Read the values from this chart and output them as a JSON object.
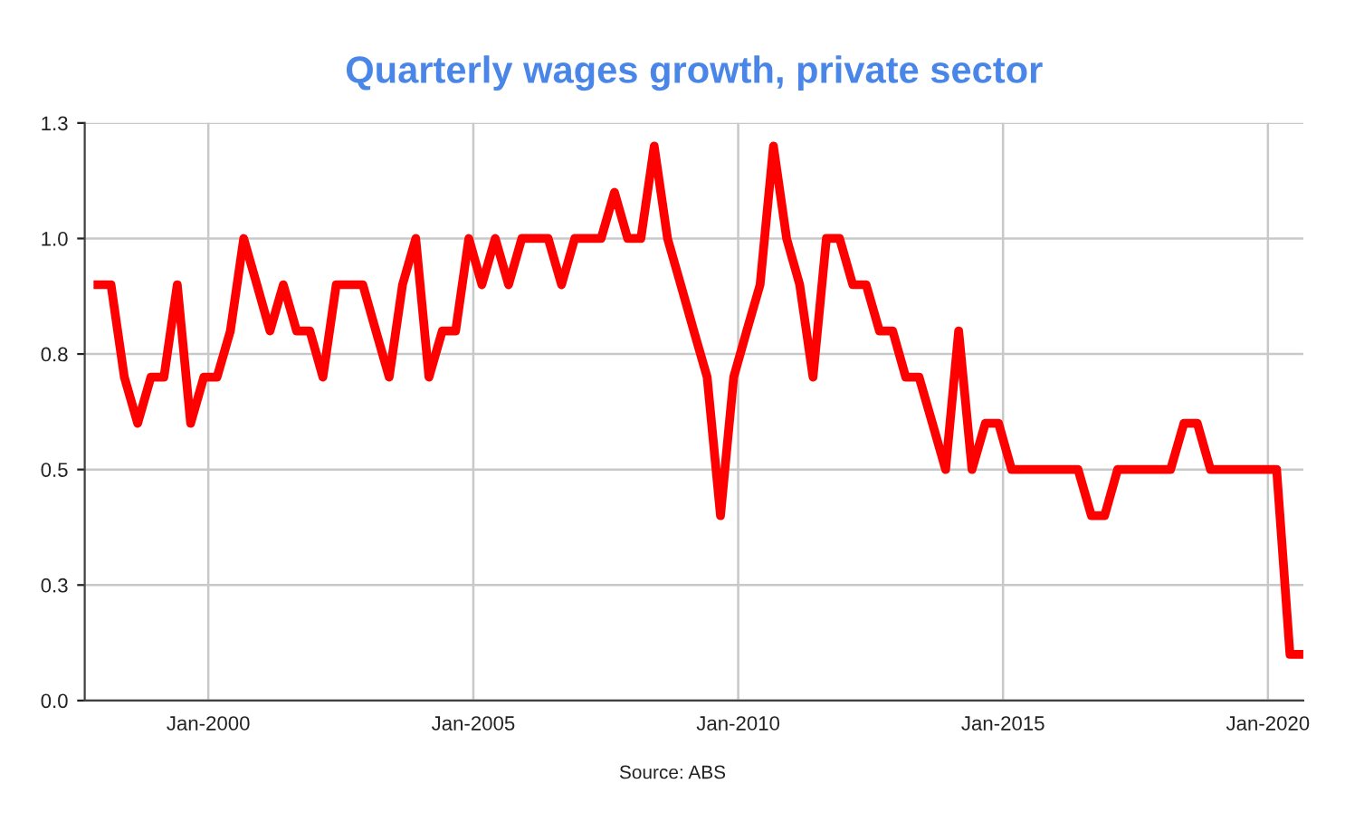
{
  "chart_data": {
    "type": "line",
    "title": "Quarterly wages growth, private sector",
    "annotations": [
      "Source: ABS"
    ],
    "x": [
      "1997-12",
      "1998-03",
      "1998-06",
      "1998-09",
      "1998-12",
      "1999-03",
      "1999-06",
      "1999-09",
      "1999-12",
      "2000-03",
      "2000-06",
      "2000-09",
      "2000-12",
      "2001-03",
      "2001-06",
      "2001-09",
      "2001-12",
      "2002-03",
      "2002-06",
      "2002-09",
      "2002-12",
      "2003-03",
      "2003-06",
      "2003-09",
      "2003-12",
      "2004-03",
      "2004-06",
      "2004-09",
      "2004-12",
      "2005-03",
      "2005-06",
      "2005-09",
      "2005-12",
      "2006-03",
      "2006-06",
      "2006-09",
      "2006-12",
      "2007-03",
      "2007-06",
      "2007-09",
      "2007-12",
      "2008-03",
      "2008-06",
      "2008-09",
      "2008-12",
      "2009-03",
      "2009-06",
      "2009-09",
      "2009-12",
      "2010-03",
      "2010-06",
      "2010-09",
      "2010-12",
      "2011-03",
      "2011-06",
      "2011-09",
      "2011-12",
      "2012-03",
      "2012-06",
      "2012-09",
      "2012-12",
      "2013-03",
      "2013-06",
      "2013-09",
      "2013-12",
      "2014-03",
      "2014-06",
      "2014-09",
      "2014-12",
      "2015-03",
      "2015-06",
      "2015-09",
      "2015-12",
      "2016-03",
      "2016-06",
      "2016-09",
      "2016-12",
      "2017-03",
      "2017-06",
      "2017-09",
      "2017-12",
      "2018-03",
      "2018-06",
      "2018-09",
      "2018-12",
      "2019-03",
      "2019-06",
      "2019-09",
      "2019-12",
      "2020-03",
      "2020-06",
      "2020-09"
    ],
    "series": [
      {
        "color": "#ff0000",
        "values": [
          0.9,
          0.9,
          0.7,
          0.6,
          0.7,
          0.7,
          0.9,
          0.6,
          0.7,
          0.7,
          0.8,
          1.0,
          0.9,
          0.8,
          0.9,
          0.8,
          0.8,
          0.7,
          0.9,
          0.9,
          0.9,
          0.8,
          0.7,
          0.9,
          1.0,
          0.7,
          0.8,
          0.8,
          1.0,
          0.9,
          1.0,
          0.9,
          1.0,
          1.0,
          1.0,
          0.9,
          1.0,
          1.0,
          1.0,
          1.1,
          1.0,
          1.0,
          1.2,
          1.0,
          0.9,
          0.8,
          0.7,
          0.4,
          0.7,
          0.8,
          0.9,
          1.2,
          1.0,
          0.9,
          0.7,
          1.0,
          1.0,
          0.9,
          0.9,
          0.8,
          0.8,
          0.7,
          0.7,
          0.6,
          0.5,
          0.8,
          0.5,
          0.6,
          0.6,
          0.5,
          0.5,
          0.5,
          0.5,
          0.5,
          0.5,
          0.4,
          0.4,
          0.5,
          0.5,
          0.5,
          0.5,
          0.5,
          0.6,
          0.6,
          0.5,
          0.5,
          0.5,
          0.5,
          0.5,
          0.5,
          0.1,
          0.1
        ]
      }
    ],
    "xlim": [
      "1997-09",
      "2020-09"
    ],
    "xticks": [
      {
        "value": "2000-01",
        "label": "Jan-2000"
      },
      {
        "value": "2005-01",
        "label": "Jan-2005"
      },
      {
        "value": "2010-01",
        "label": "Jan-2010"
      },
      {
        "value": "2015-01",
        "label": "Jan-2015"
      },
      {
        "value": "2020-01",
        "label": "Jan-2020"
      }
    ],
    "ylim": [
      0,
      1.25
    ],
    "yticks": [
      {
        "value": 0,
        "label": "0.0"
      },
      {
        "value": 0.25,
        "label": "0.3"
      },
      {
        "value": 0.5,
        "label": "0.5"
      },
      {
        "value": 0.75,
        "label": "0.8"
      },
      {
        "value": 1.0,
        "label": "1.0"
      },
      {
        "value": 1.25,
        "label": "1.3"
      }
    ],
    "grid": true,
    "legend": false,
    "marker": "none",
    "line_style": "solid"
  }
}
